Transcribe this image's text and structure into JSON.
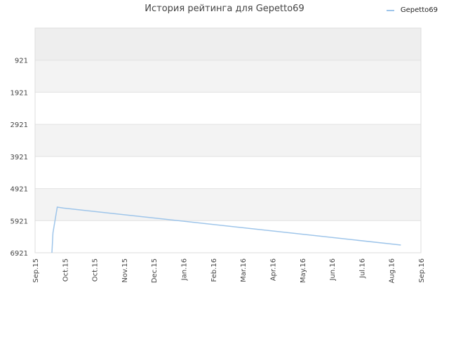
{
  "chart_data": {
    "type": "line",
    "title": "История рейтинга для Gepetto69",
    "xlabel": "",
    "ylabel": "",
    "y_inverted": true,
    "ylim": [
      -79,
      6921
    ],
    "y_ticks": [
      921,
      1921,
      2921,
      3921,
      4921,
      5921,
      6921
    ],
    "x_ticks": [
      "Sep.15",
      "Oct.15",
      "Oct.15",
      "Nov.15",
      "Dec.15",
      "Jan.16",
      "Feb.16",
      "Mar.16",
      "Apr.16",
      "May.16",
      "Jun.16",
      "Jul.16",
      "Aug.16",
      "Sep.16"
    ],
    "grid": true,
    "legend_position": "top-right",
    "series": [
      {
        "name": "Gepetto69",
        "color": "#9ec5ea",
        "points": [
          {
            "x": "2015-09-17",
            "y": 6921
          },
          {
            "x": "2015-09-18",
            "y": 6300
          },
          {
            "x": "2015-09-22",
            "y": 5500
          },
          {
            "x": "2015-09-28",
            "y": 5530
          },
          {
            "x": "2016-08-13",
            "y": 6680
          }
        ]
      }
    ]
  }
}
